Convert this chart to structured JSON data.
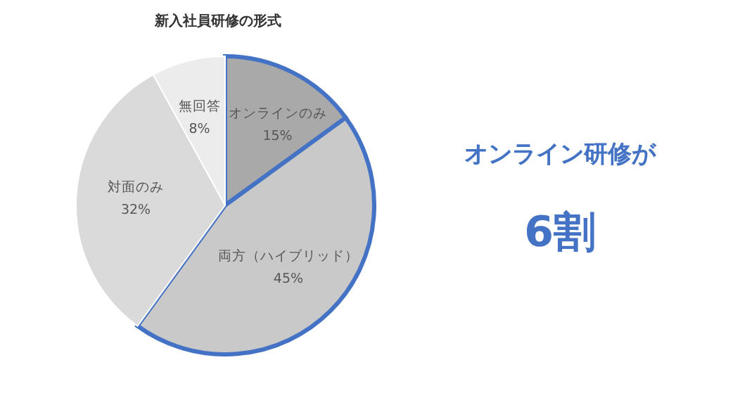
{
  "chart_data": {
    "type": "pie",
    "title": "新入社員研修の形式",
    "categories": [
      "オンラインのみ",
      "両方（ハイブリッド）",
      "対面のみ",
      "無回答"
    ],
    "values": [
      15,
      45,
      32,
      8
    ],
    "value_labels": [
      "15%",
      "45%",
      "32%",
      "8%"
    ],
    "colors": [
      "#a9a9a9",
      "#c9c9c9",
      "#dadada",
      "#ececec"
    ],
    "annotations": [
      "オンライン研修が",
      "6割"
    ]
  }
}
